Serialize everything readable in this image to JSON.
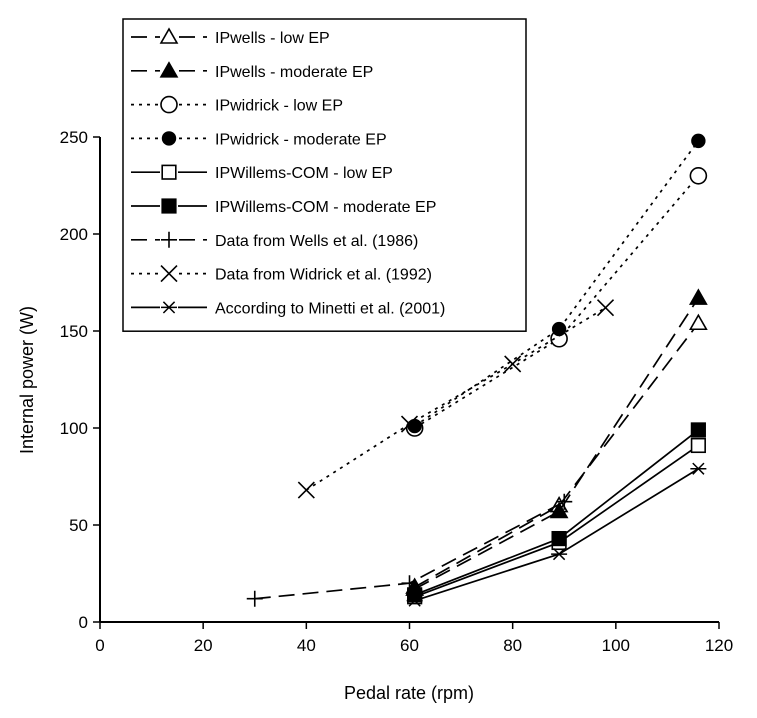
{
  "chart_data": {
    "type": "line",
    "title": "",
    "xlabel": "Pedal rate (rpm)",
    "ylabel": "Internal power (W)",
    "xlim": [
      0,
      120
    ],
    "ylim": [
      0,
      250
    ],
    "xticks": [
      "0",
      "20",
      "40",
      "60",
      "80",
      "100",
      "120"
    ],
    "yticks": [
      "0",
      "50",
      "100",
      "150",
      "200",
      "250"
    ],
    "grid": false,
    "legend_position": "top-left",
    "series": [
      {
        "name": "IPwells - low EP",
        "dash": "long-dash",
        "marker": "triangle-open",
        "x": [
          61,
          89,
          116
        ],
        "y": [
          18,
          60,
          154
        ]
      },
      {
        "name": "IPwells - moderate EP",
        "dash": "long-dash",
        "marker": "triangle-filled",
        "x": [
          61,
          89,
          116
        ],
        "y": [
          17,
          57,
          167
        ]
      },
      {
        "name": "IPwidrick - low EP",
        "dash": "dotted",
        "marker": "circle-open",
        "x": [
          61,
          89,
          116
        ],
        "y": [
          100,
          146,
          230
        ]
      },
      {
        "name": "IPwidrick - moderate EP",
        "dash": "dotted",
        "marker": "circle-filled",
        "x": [
          61,
          89,
          116
        ],
        "y": [
          101,
          151,
          248
        ]
      },
      {
        "name": "IPWillems-COM - low EP",
        "dash": "solid",
        "marker": "square-open",
        "x": [
          61,
          89,
          116
        ],
        "y": [
          13,
          41,
          91
        ]
      },
      {
        "name": "IPWillems-COM - moderate EP",
        "dash": "solid",
        "marker": "square-filled",
        "x": [
          61,
          89,
          116
        ],
        "y": [
          14,
          43,
          99
        ]
      },
      {
        "name": "Data from Wells et al. (1986)",
        "dash": "long-dash",
        "marker": "plus",
        "x": [
          30,
          60,
          90
        ],
        "y": [
          12,
          20,
          62
        ]
      },
      {
        "name": "Data from Widrick et al. (1992)",
        "dash": "dotted",
        "marker": "cross",
        "x": [
          40,
          60,
          80,
          98
        ],
        "y": [
          68,
          102,
          133,
          162
        ]
      },
      {
        "name": "According to Minetti et al. (2001)",
        "dash": "solid",
        "marker": "asterisk",
        "x": [
          61,
          89,
          116
        ],
        "y": [
          11,
          35,
          79
        ]
      }
    ]
  }
}
